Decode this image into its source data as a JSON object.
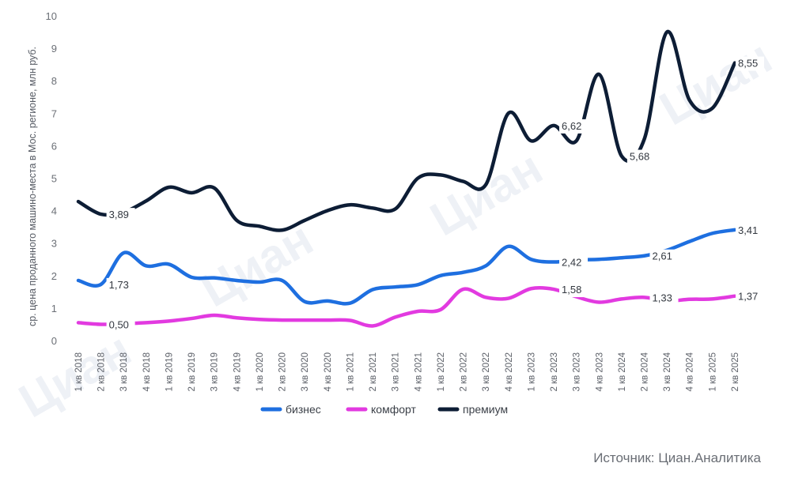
{
  "chart_data": {
    "type": "line",
    "ylabel": "ср. цена проданного машино-места в Мос. регионе, млн руб.",
    "ylim": [
      0,
      10
    ],
    "yticks": [
      0,
      1,
      2,
      3,
      4,
      5,
      6,
      7,
      8,
      9,
      10
    ],
    "categories": [
      "1 кв 2018",
      "2 кв 2018",
      "3 кв 2018",
      "4 кв 2018",
      "1 кв 2019",
      "2 кв 2019",
      "3 кв 2019",
      "4 кв 2019",
      "1 кв 2020",
      "2 кв 2020",
      "3 кв 2020",
      "4 кв 2020",
      "1 кв 2021",
      "2 кв 2021",
      "3 кв 2021",
      "4 кв 2021",
      "1 кв 2022",
      "2 кв 2022",
      "3 кв 2022",
      "4 кв 2022",
      "1 кв 2023",
      "2 кв 2023",
      "3 кв 2023",
      "4 кв 2023",
      "1 кв 2024",
      "2 кв 2024",
      "3 кв 2024",
      "4 кв 2024",
      "1 кв 2025",
      "2 кв 2025"
    ],
    "series": [
      {
        "name": "бизнес",
        "color": "#1e6fe0",
        "values": [
          1.85,
          1.73,
          2.7,
          2.3,
          2.35,
          1.95,
          1.93,
          1.85,
          1.8,
          1.85,
          1.2,
          1.22,
          1.15,
          1.57,
          1.65,
          1.72,
          2.0,
          2.1,
          2.3,
          2.9,
          2.5,
          2.42,
          2.48,
          2.5,
          2.55,
          2.61,
          2.78,
          3.05,
          3.3,
          3.41
        ]
      },
      {
        "name": "комфорт",
        "color": "#e23ae0",
        "values": [
          0.55,
          0.5,
          0.52,
          0.55,
          0.6,
          0.68,
          0.78,
          0.7,
          0.65,
          0.63,
          0.63,
          0.63,
          0.62,
          0.45,
          0.72,
          0.9,
          0.95,
          1.58,
          1.33,
          1.3,
          1.6,
          1.58,
          1.35,
          1.18,
          1.28,
          1.33,
          1.22,
          1.27,
          1.28,
          1.37
        ]
      },
      {
        "name": "премиум",
        "color": "#0d1d35",
        "values": [
          4.28,
          3.89,
          3.95,
          4.3,
          4.72,
          4.55,
          4.7,
          3.7,
          3.52,
          3.4,
          3.7,
          4.0,
          4.18,
          4.08,
          4.05,
          5.0,
          5.1,
          4.9,
          4.8,
          7.0,
          6.15,
          6.62,
          6.15,
          8.2,
          5.68,
          6.2,
          9.5,
          7.4,
          7.15,
          8.55
        ]
      }
    ],
    "data_labels": [
      {
        "series": 0,
        "index": 1,
        "text": "1,73"
      },
      {
        "series": 0,
        "index": 21,
        "text": "2,42"
      },
      {
        "series": 0,
        "index": 25,
        "text": "2,61"
      },
      {
        "series": 0,
        "index": 29,
        "text": "3,41"
      },
      {
        "series": 1,
        "index": 1,
        "text": "0,50"
      },
      {
        "series": 1,
        "index": 21,
        "text": "1,58"
      },
      {
        "series": 1,
        "index": 25,
        "text": "1,33"
      },
      {
        "series": 1,
        "index": 29,
        "text": "1,37"
      },
      {
        "series": 2,
        "index": 1,
        "text": "3,89"
      },
      {
        "series": 2,
        "index": 21,
        "text": "6,62"
      },
      {
        "series": 2,
        "index": 24,
        "text": "5,68"
      },
      {
        "series": 2,
        "index": 29,
        "text": "8,55"
      }
    ],
    "legend": [
      "бизнес",
      "комфорт",
      "премиум"
    ],
    "legend_position": "bottom-center",
    "grid": false
  },
  "source": "Источник: Циан.Аналитика",
  "watermark": "Циан"
}
